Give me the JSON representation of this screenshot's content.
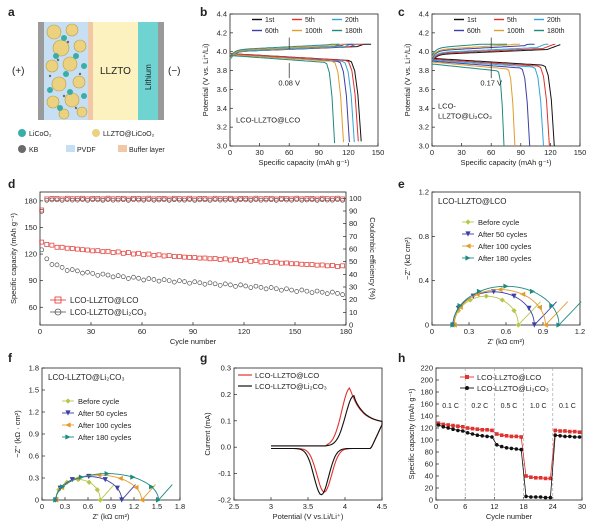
{
  "panel_labels": [
    "a",
    "b",
    "c",
    "d",
    "e",
    "f",
    "g",
    "h"
  ],
  "schematic": {
    "plus_label": "(+)",
    "minus_label": "(−)",
    "electrolyte_label": "LLZTO",
    "anode_label": "Lithium",
    "legend": [
      {
        "name": "LiCoO₂",
        "color": "#3aaea6"
      },
      {
        "name": "LLZTO@LiCoO₂",
        "color": "#ecd27e"
      },
      {
        "name": "KB",
        "color": "#6a6a6a"
      },
      {
        "name": "PVDF",
        "color": "#c7dff2"
      },
      {
        "name": "Buffer layer",
        "color": "#f2c7a6"
      }
    ]
  },
  "cycle_colors": [
    "#111111",
    "#e0322f",
    "#2fa6d9",
    "#3b3fa6",
    "#e39b2a",
    "#1d8a80"
  ],
  "chart_data": [
    {
      "id": "b",
      "type": "line",
      "title": "",
      "xlabel": "Specific capacity (mAh g⁻¹)",
      "ylabel": "Potential (V vs. Li⁺/Li)",
      "xlim": [
        0,
        150
      ],
      "ylim": [
        3.0,
        4.4
      ],
      "xticks": [
        0,
        30,
        60,
        90,
        120,
        150
      ],
      "yticks": [
        3.0,
        3.2,
        3.4,
        3.6,
        3.8,
        4.0,
        4.2,
        4.4
      ],
      "legend": [
        "1st",
        "5th",
        "20th",
        "60th",
        "100th",
        "180th"
      ],
      "inset_text": "LCO-LLZTO@LCO",
      "annotation": "0.08 V",
      "series": [
        {
          "name": "1st",
          "charge_end": 143,
          "discharge_end": 133,
          "charge_plateau": 4.0,
          "discharge_plateau": 3.93
        },
        {
          "name": "5th",
          "charge_end": 135,
          "discharge_end": 130,
          "charge_plateau": 4.0,
          "discharge_plateau": 3.93
        },
        {
          "name": "20th",
          "charge_end": 129,
          "discharge_end": 126,
          "charge_plateau": 4.0,
          "discharge_plateau": 3.92
        },
        {
          "name": "60th",
          "charge_end": 125,
          "discharge_end": 121,
          "charge_plateau": 4.01,
          "discharge_plateau": 3.92
        },
        {
          "name": "100th",
          "charge_end": 118,
          "discharge_end": 115,
          "charge_plateau": 4.01,
          "discharge_plateau": 3.92
        },
        {
          "name": "180th",
          "charge_end": 111,
          "discharge_end": 106,
          "charge_plateau": 4.02,
          "discharge_plateau": 3.91
        }
      ]
    },
    {
      "id": "c",
      "type": "line",
      "title": "",
      "xlabel": "Specific capacity (mAh g⁻¹)",
      "ylabel": "Potential (V vs. Li⁺/Li)",
      "xlim": [
        0,
        150
      ],
      "ylim": [
        3.0,
        4.4
      ],
      "xticks": [
        0,
        30,
        60,
        90,
        120,
        150
      ],
      "yticks": [
        3.0,
        3.2,
        3.4,
        3.6,
        3.8,
        4.0,
        4.2,
        4.4
      ],
      "legend": [
        "1st",
        "5th",
        "20th",
        "60th",
        "100th",
        "180th"
      ],
      "inset_text": [
        "LCO-",
        "LLZTO@Li₂CO₃"
      ],
      "annotation": "0.17 V",
      "series": [
        {
          "name": "1st",
          "charge_end": 130,
          "discharge_end": 124,
          "charge_plateau": 3.97,
          "discharge_plateau": 3.88
        },
        {
          "name": "5th",
          "charge_end": 125,
          "discharge_end": 119,
          "charge_plateau": 3.98,
          "discharge_plateau": 3.87
        },
        {
          "name": "20th",
          "charge_end": 118,
          "discharge_end": 113,
          "charge_plateau": 3.99,
          "discharge_plateau": 3.86
        },
        {
          "name": "60th",
          "charge_end": 104,
          "discharge_end": 99,
          "charge_plateau": 4.01,
          "discharge_plateau": 3.85
        },
        {
          "name": "100th",
          "charge_end": 89,
          "discharge_end": 84,
          "charge_plateau": 4.02,
          "discharge_plateau": 3.84
        },
        {
          "name": "180th",
          "charge_end": 76,
          "discharge_end": 73,
          "charge_plateau": 4.04,
          "discharge_plateau": 3.82
        }
      ]
    },
    {
      "id": "d",
      "type": "scatter",
      "title": "",
      "xlabel": "Cycle number",
      "ylabel": "Specific capacity (mAh g⁻¹)",
      "ylabel_right": "Coulombic efficiency (%)",
      "xlim": [
        0,
        180
      ],
      "ylim": [
        40,
        190
      ],
      "ylim_right": [
        0,
        105
      ],
      "xticks": [
        0,
        30,
        60,
        90,
        120,
        150,
        180
      ],
      "yticks": [
        60,
        90,
        120,
        150,
        180
      ],
      "yticks_right": [
        0,
        10,
        20,
        30,
        40,
        50,
        60,
        70,
        80,
        90,
        100
      ],
      "series": [
        {
          "name": "LCO-LLZTO@LCO",
          "color": "#e0322f",
          "capacity_points": [
            [
              1,
              133
            ],
            [
              10,
              128
            ],
            [
              30,
              124
            ],
            [
              60,
              120
            ],
            [
              90,
              116
            ],
            [
              120,
              113
            ],
            [
              150,
              109
            ],
            [
              180,
              106
            ]
          ],
          "efficiency": 99.8
        },
        {
          "name": "LCO-LLZTO@Li₂CO₃",
          "color": "#555555",
          "capacity_points": [
            [
              1,
              124
            ],
            [
              5,
              111
            ],
            [
              15,
              103
            ],
            [
              30,
              98
            ],
            [
              60,
              92
            ],
            [
              90,
              88
            ],
            [
              120,
              84
            ],
            [
              150,
              79
            ],
            [
              180,
              75
            ]
          ],
          "efficiency": 99.5
        }
      ]
    },
    {
      "id": "e",
      "type": "scatter",
      "title": "LCO-LLZTO@LCO",
      "xlabel": "Z' (kΩ cm²)",
      "ylabel": "−Z'' (kΩ cm²)",
      "xlim": [
        0,
        1.2
      ],
      "ylim": [
        0,
        1.2
      ],
      "xticks": [
        0,
        0.3,
        0.6,
        0.9,
        1.2
      ],
      "yticks": [
        0,
        0.4,
        0.8,
        1.2
      ],
      "series": [
        {
          "name": "Before cycle",
          "color": "#b7c64a",
          "r0": 0.18,
          "diameter": 0.52,
          "height": 0.26
        },
        {
          "name": "After 50 cycles",
          "color": "#3b3fa6",
          "r0": 0.17,
          "diameter": 0.66,
          "height": 0.3
        },
        {
          "name": "After 100 cycles",
          "color": "#e39b2a",
          "r0": 0.18,
          "diameter": 0.74,
          "height": 0.32
        },
        {
          "name": "After 180 cycles",
          "color": "#1d8a80",
          "r0": 0.17,
          "diameter": 0.86,
          "height": 0.35
        }
      ]
    },
    {
      "id": "f",
      "type": "scatter",
      "title": "LCO-LLZTO@Li₂CO₃",
      "xlabel": "Z' (kΩ cm²)",
      "ylabel": "−Z'' (kΩ · cm²)",
      "xlim": [
        0,
        1.8
      ],
      "ylim": [
        0,
        1.8
      ],
      "xticks": [
        0,
        0.3,
        0.6,
        0.9,
        1.2,
        1.5,
        1.8
      ],
      "yticks": [
        0,
        0.3,
        0.6,
        0.9,
        1.2,
        1.5,
        1.8
      ],
      "series": [
        {
          "name": "Before cycle",
          "color": "#b7c64a",
          "r0": 0.18,
          "diameter": 0.58,
          "height": 0.28
        },
        {
          "name": "After 50 cycles",
          "color": "#3b3fa6",
          "r0": 0.18,
          "diameter": 0.86,
          "height": 0.32
        },
        {
          "name": "After 100 cycles",
          "color": "#e39b2a",
          "r0": 0.18,
          "diameter": 1.12,
          "height": 0.34
        },
        {
          "name": "After 180 cycles",
          "color": "#1d8a80",
          "r0": 0.18,
          "diameter": 1.34,
          "height": 0.36
        }
      ]
    },
    {
      "id": "g",
      "type": "line",
      "title": "",
      "xlabel": "Potential (V vs.Li/Li⁺)",
      "ylabel": "Current (mA)",
      "xlim": [
        2.5,
        4.5
      ],
      "ylim": [
        -0.2,
        0.3
      ],
      "xticks": [
        2.5,
        3.0,
        3.5,
        4.0,
        4.5
      ],
      "yticks": [
        -0.2,
        -0.1,
        0.0,
        0.1,
        0.2,
        0.3
      ],
      "series": [
        {
          "name": "LCO-LLZTO@LCO",
          "color": "#e0322f",
          "anodic_peak": [
            4.07,
            0.22
          ],
          "cathodic_peak": [
            3.72,
            -0.165
          ]
        },
        {
          "name": "LCO-LLZTO@Li₂CO₃",
          "color": "#111111",
          "anodic_peak": [
            4.12,
            0.19
          ],
          "cathodic_peak": [
            3.68,
            -0.175
          ]
        }
      ]
    },
    {
      "id": "h",
      "type": "scatter",
      "title": "",
      "xlabel": "Cycle number",
      "ylabel": "Specific capacity (mAh g⁻¹)",
      "xlim": [
        0,
        30
      ],
      "ylim": [
        0,
        220
      ],
      "xticks": [
        0,
        6,
        12,
        18,
        24,
        30
      ],
      "yticks": [
        0,
        20,
        40,
        60,
        80,
        100,
        120,
        140,
        160,
        180,
        200,
        220
      ],
      "rate_labels": [
        "0.1 C",
        "0.2 C",
        "0.5 C",
        "1.0 C",
        "0.1 C"
      ],
      "series": [
        {
          "name": "LCO-LLZTO@LCO",
          "color": "#e0322f",
          "values": [
            128,
            126,
            125,
            124,
            123,
            122,
            120,
            119,
            118,
            117,
            117,
            116,
            110,
            108,
            107,
            106,
            106,
            105,
            40,
            38,
            37,
            37,
            36,
            36,
            116,
            115,
            115,
            114,
            114,
            113
          ]
        },
        {
          "name": "LCO-LLZTO@Li₂CO₃",
          "color": "#111111",
          "values": [
            125,
            122,
            120,
            118,
            116,
            115,
            112,
            110,
            108,
            107,
            106,
            105,
            92,
            89,
            87,
            86,
            85,
            84,
            6,
            5,
            5,
            5,
            4,
            4,
            108,
            107,
            106,
            106,
            105,
            105
          ]
        }
      ]
    }
  ]
}
